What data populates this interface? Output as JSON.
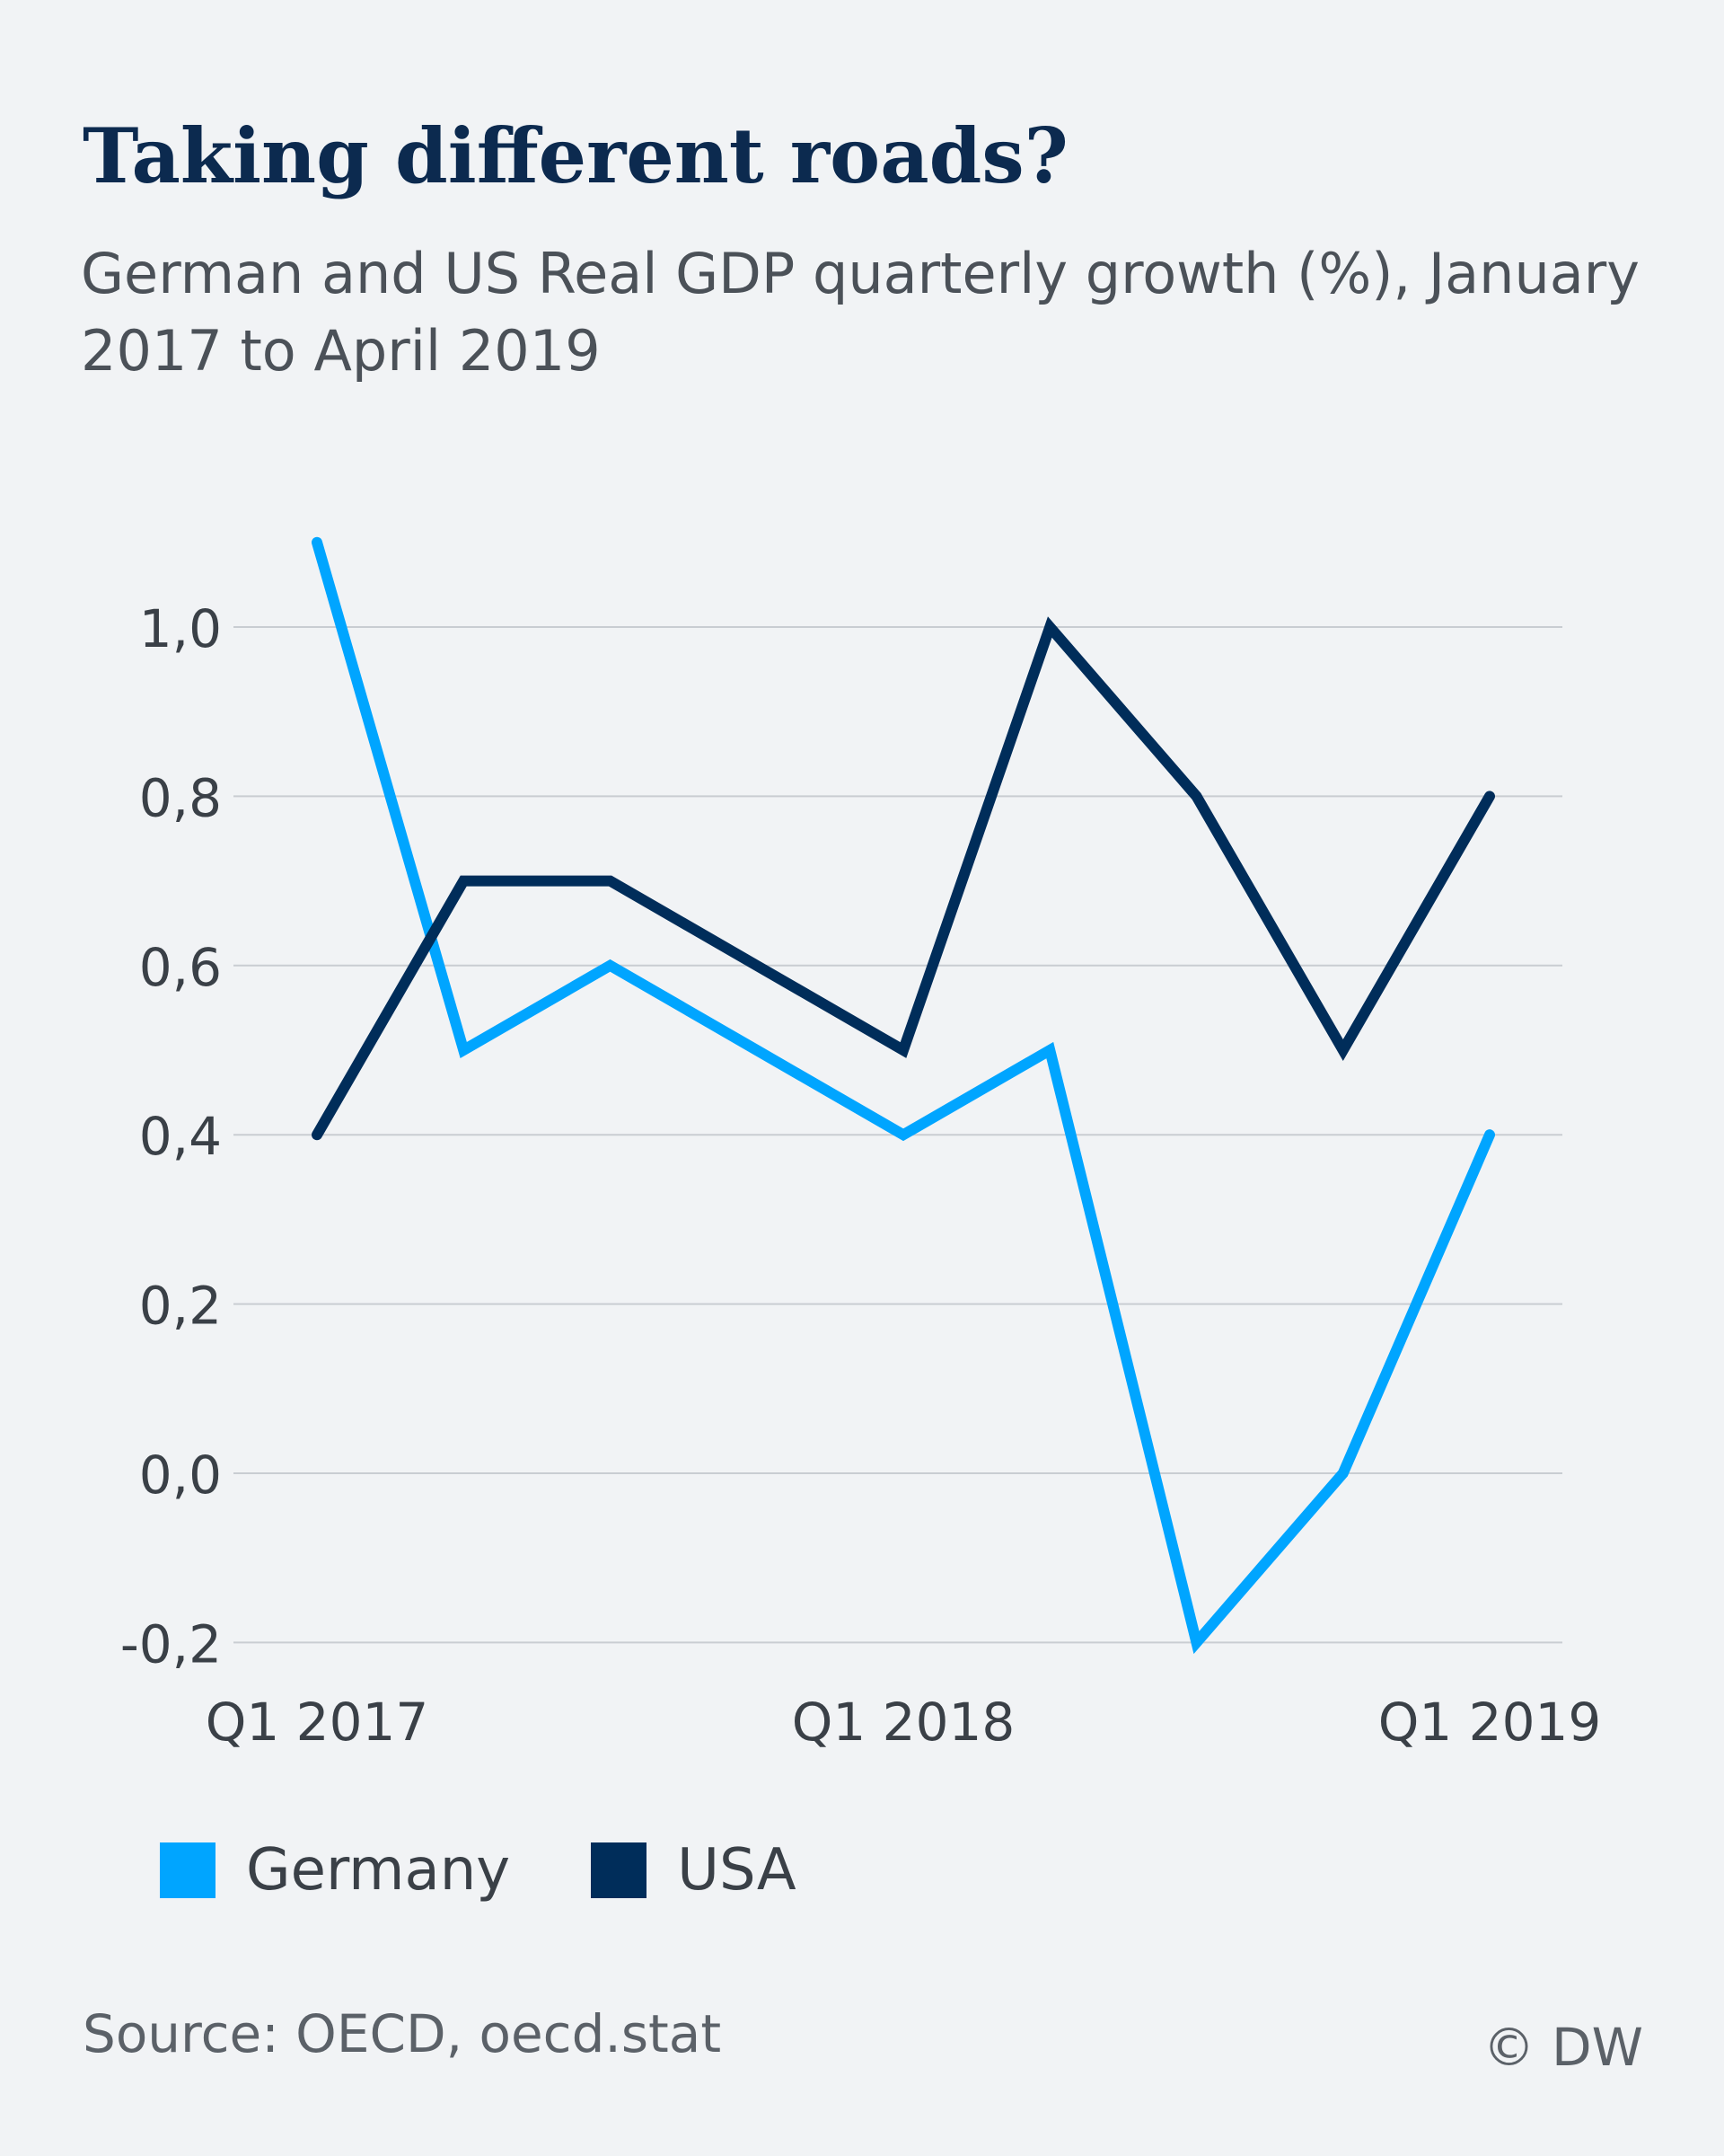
{
  "header": {
    "title": "Taking different roads?",
    "subtitle": "German and US Real GDP quarterly growth (%), January 2017 to April 2019"
  },
  "chart_data": {
    "type": "line",
    "x": [
      "Q1 2017",
      "Q2 2017",
      "Q3 2017",
      "Q4 2017",
      "Q1 2018",
      "Q2 2018",
      "Q3 2018",
      "Q4 2018",
      "Q1 2019"
    ],
    "x_tick_labels": [
      "Q1 2017",
      "",
      "",
      "",
      "Q1 2018",
      "",
      "",
      "",
      "Q1 2019"
    ],
    "series": [
      {
        "name": "Germany",
        "color": "#00a5ff",
        "values": [
          1.1,
          0.5,
          0.6,
          0.5,
          0.4,
          0.5,
          -0.2,
          0.0,
          0.4
        ]
      },
      {
        "name": "USA",
        "color": "#002d5a",
        "values": [
          0.4,
          0.7,
          0.7,
          0.6,
          0.5,
          1.0,
          0.8,
          0.5,
          0.8
        ]
      }
    ],
    "y_ticks": [
      -0.2,
      0.0,
      0.2,
      0.4,
      0.6,
      0.8,
      1.0
    ],
    "y_tick_labels": [
      "-0,2",
      "0,0",
      "0,2",
      "0,4",
      "0,6",
      "0,8",
      "1,0"
    ],
    "ylim": [
      -0.2,
      1.1
    ],
    "grid": true,
    "legend_position": "bottom-left"
  },
  "legend": {
    "items": [
      {
        "label": "Germany",
        "color": "#00a5ff"
      },
      {
        "label": "USA",
        "color": "#002d5a"
      }
    ]
  },
  "footer": {
    "source": "Source: OECD, oecd.stat",
    "credit": "© DW"
  }
}
